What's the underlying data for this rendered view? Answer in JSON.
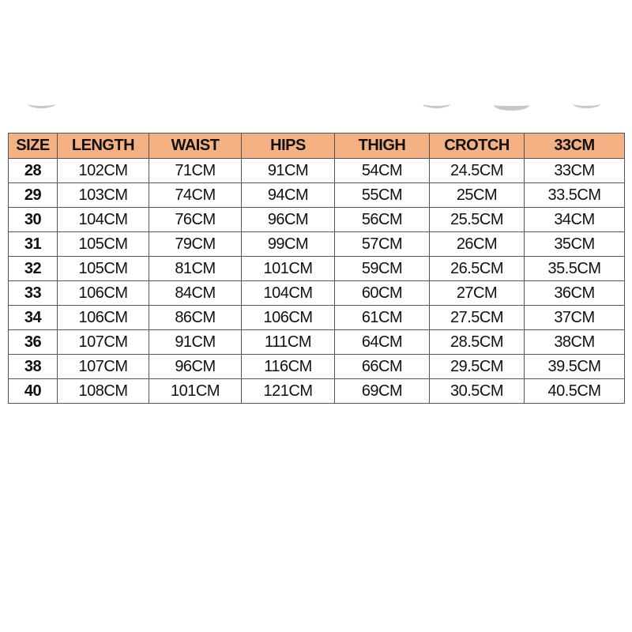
{
  "table": {
    "headers": [
      "SIZE",
      "LENGTH",
      "WAIST",
      "HIPS",
      "THIGH",
      "CROTCH",
      "33CM"
    ],
    "rows": [
      [
        "28",
        "102CM",
        "71CM",
        "91CM",
        "54CM",
        "24.5CM",
        "33CM"
      ],
      [
        "29",
        "103CM",
        "74CM",
        "94CM",
        "55CM",
        "25CM",
        "33.5CM"
      ],
      [
        "30",
        "104CM",
        "76CM",
        "96CM",
        "56CM",
        "25.5CM",
        "34CM"
      ],
      [
        "31",
        "105CM",
        "79CM",
        "99CM",
        "57CM",
        "26CM",
        "35CM"
      ],
      [
        "32",
        "105CM",
        "81CM",
        "101CM",
        "59CM",
        "26.5CM",
        "35.5CM"
      ],
      [
        "33",
        "106CM",
        "84CM",
        "104CM",
        "60CM",
        "27CM",
        "36CM"
      ],
      [
        "34",
        "106CM",
        "86CM",
        "106CM",
        "61CM",
        "27.5CM",
        "37CM"
      ],
      [
        "36",
        "107CM",
        "91CM",
        "111CM",
        "64CM",
        "28.5CM",
        "38CM"
      ],
      [
        "38",
        "107CM",
        "96CM",
        "116CM",
        "66CM",
        "29.5CM",
        "39.5CM"
      ],
      [
        "40",
        "108CM",
        "101CM",
        "121CM",
        "69CM",
        "30.5CM",
        "40.5CM"
      ]
    ],
    "header_color": "#f4b183"
  }
}
